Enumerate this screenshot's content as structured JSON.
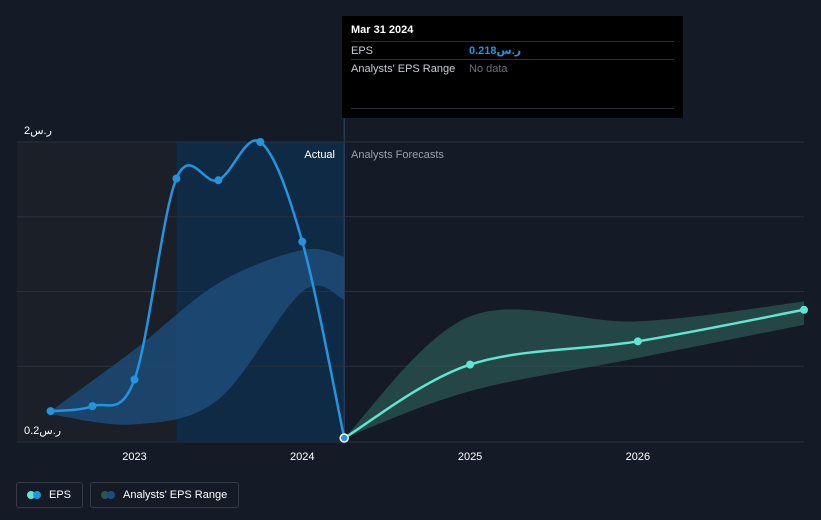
{
  "tooltip": {
    "date": "Mar 31 2024",
    "eps_label": "EPS",
    "eps_value": "0.218ر.س",
    "range_label": "Analysts' EPS Range",
    "range_value": "No data"
  },
  "legend": {
    "eps": "EPS",
    "range": "Analysts' EPS Range"
  },
  "colors": {
    "background": "#151b26",
    "actual_shade": "#0f2a44",
    "eps_line": "#2394df",
    "forecast_line": "#5ee6d0",
    "forecast_band": "#2b5552",
    "actual_band": "#1d4e7a"
  },
  "chart_data": {
    "type": "line",
    "y_tick_labels": [
      "2ر.س",
      "0.2ر.س"
    ],
    "x_tick_labels": [
      "2023",
      "2024",
      "2025",
      "2026"
    ],
    "section_labels": {
      "actual": "Actual",
      "forecast": "Analysts Forecasts"
    },
    "ylim": [
      0.2,
      2.0
    ],
    "xlim": [
      2022.3,
      2026.99
    ],
    "grid": true,
    "legend_position": "bottom-left",
    "highlight_x": 2024.25,
    "actual_shade_start": 2023.25,
    "series": [
      {
        "name": "EPS",
        "role": "actual",
        "x": [
          2022.5,
          2022.75,
          2023.0,
          2023.25,
          2023.5,
          2023.75,
          2024.0,
          2024.25
        ],
        "y": [
          0.38,
          0.41,
          0.57,
          1.78,
          1.77,
          2.0,
          1.4,
          0.218
        ]
      },
      {
        "name": "EPS",
        "role": "forecast",
        "x": [
          2024.25,
          2025.0,
          2026.0,
          2026.99
        ],
        "y": [
          0.218,
          0.66,
          0.8,
          0.99
        ]
      }
    ],
    "bands": [
      {
        "name": "Analysts' EPS Range",
        "role": "past",
        "x": [
          2022.5,
          2023.0,
          2023.5,
          2024.0,
          2024.25
        ],
        "lower": [
          0.36,
          0.3,
          0.45,
          1.1,
          1.05
        ],
        "upper": [
          0.38,
          0.75,
          1.15,
          1.35,
          1.31
        ]
      },
      {
        "name": "Analysts' EPS Range",
        "role": "future",
        "x": [
          2024.25,
          2025.0,
          2026.0,
          2026.99
        ],
        "lower": [
          0.218,
          0.5,
          0.7,
          0.9
        ],
        "upper": [
          0.218,
          0.95,
          0.92,
          1.04
        ]
      }
    ]
  }
}
